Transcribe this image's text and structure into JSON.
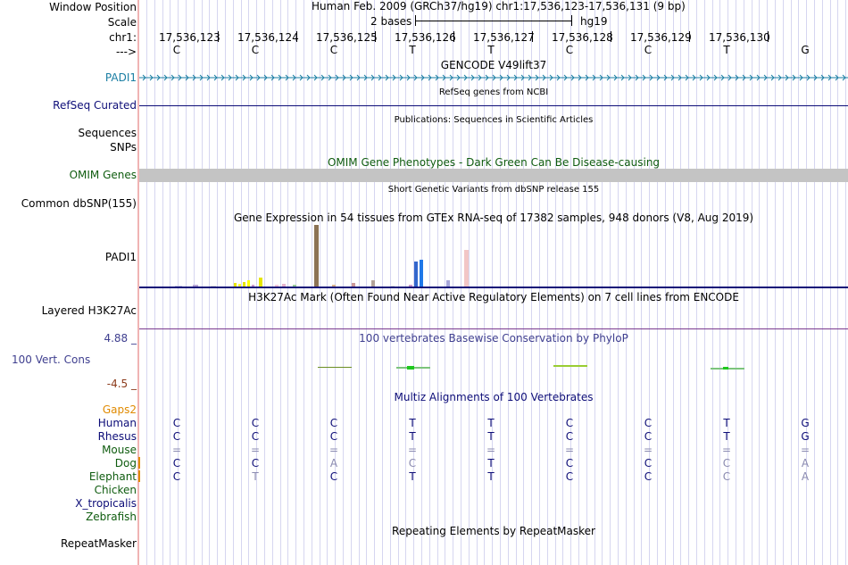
{
  "header": {
    "window_position_label": "Window Position",
    "assembly_position": "Human Feb. 2009 (GRCh37/hg19)   chr1:17,536,123-17,536,131 (9 bp)",
    "scale_label": "Scale",
    "scale_text": "2 bases",
    "scale_db": "hg19",
    "chrom_label": "chr1:",
    "strand_label": "--->",
    "positions": [
      "17,536,123",
      "17,536,124",
      "17,536,125",
      "17,536,126",
      "17,536,127",
      "17,536,128",
      "17,536,129",
      "17,536,130"
    ],
    "bases": [
      "C",
      "C",
      "C",
      "T",
      "T",
      "C",
      "C",
      "T",
      "G"
    ]
  },
  "tracks": {
    "gencode": {
      "title": "GENCODE V49lift37",
      "gene": "PADI1",
      "color": "#1a7ea3"
    },
    "refseq": {
      "title": "RefSeq genes from NCBI",
      "label": "RefSeq Curated",
      "color": "#0d0d78"
    },
    "publications": {
      "title": "Publications: Sequences in Scientific Articles",
      "label1": "Sequences",
      "label2": "SNPs"
    },
    "omim": {
      "title": "OMIM Gene Phenotypes - Dark Green Can Be Disease-causing",
      "label": "OMIM Genes",
      "color": "#0f5c0f"
    },
    "dbsnp": {
      "title": "Short Genetic Variants from dbSNP release 155",
      "label": "Common dbSNP(155)"
    },
    "gtex": {
      "title": "Gene Expression in 54 tissues from GTEx RNA-seq of 17382 samples, 948 donors (V8, Aug 2019)",
      "gene": "PADI1"
    },
    "h3k27ac": {
      "title": "H3K27Ac Mark (Often Found Near Active Regulatory Elements) on 7 cell lines from ENCODE",
      "label": "Layered H3K27Ac"
    },
    "phylop": {
      "title": "100 vertebrates Basewise Conservation by PhyloP",
      "label": "100 Vert. Cons",
      "max": "4.88 _",
      "min": "-4.5 _",
      "color": "#3f3f8f",
      "min_color": "#8b3a1a"
    },
    "multiz": {
      "title": "Multiz Alignments of 100 Vertebrates",
      "gaps_label": "Gaps2",
      "species": [
        {
          "name": "Human",
          "color": "#0d0d78",
          "bases": [
            "C",
            "C",
            "C",
            "T",
            "T",
            "C",
            "C",
            "T",
            "G"
          ]
        },
        {
          "name": "Rhesus",
          "color": "#0d0d78",
          "bases": [
            "C",
            "C",
            "C",
            "T",
            "T",
            "C",
            "C",
            "T",
            "G"
          ]
        },
        {
          "name": "Mouse",
          "color": "#0f5c0f",
          "bases": [
            "=",
            "=",
            "=",
            "=",
            "=",
            "=",
            "=",
            "=",
            "="
          ]
        },
        {
          "name": "Dog",
          "color": "#0f5c0f",
          "bases": [
            "C",
            "C",
            "A",
            "C",
            "T",
            "C",
            "C",
            "C",
            "A"
          ]
        },
        {
          "name": "Elephant",
          "color": "#0f5c0f",
          "bases": [
            "C",
            "T",
            "C",
            "T",
            "T",
            "C",
            "C",
            "C",
            "A"
          ]
        },
        {
          "name": "Chicken",
          "color": "#0f5c0f",
          "bases": []
        },
        {
          "name": "X_tropicalis",
          "color": "#0d0d78",
          "bases": []
        },
        {
          "name": "Zebrafish",
          "color": "#0f5c0f",
          "bases": []
        }
      ]
    },
    "repeatmasker": {
      "title": "Repeating Elements by RepeatMasker",
      "label": "RepeatMasker"
    }
  }
}
